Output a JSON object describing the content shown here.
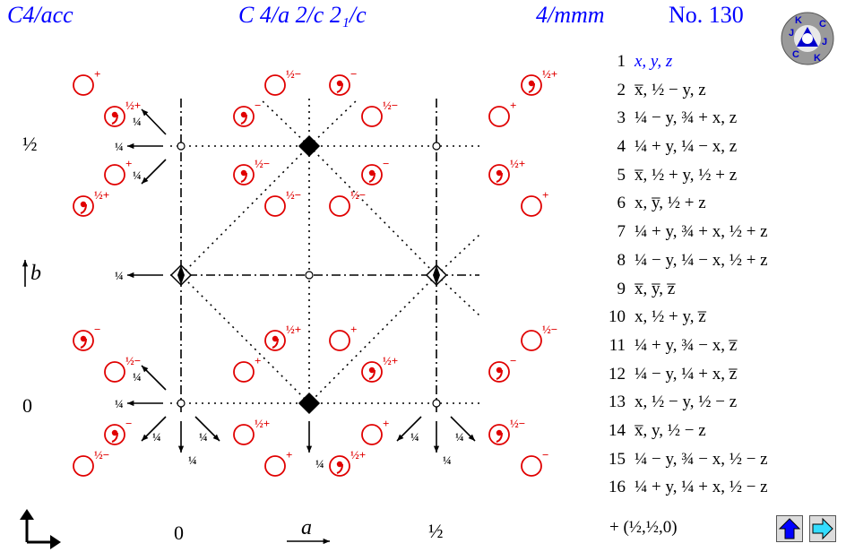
{
  "header": {
    "short_symbol": "C4/acc",
    "full_symbol": "C 4/a 2/c 2₁/c",
    "point_group": "4/mmm",
    "number_label": "No. 130"
  },
  "logo": {
    "text": "JKC JKC",
    "icon": "jkc-logo-icon"
  },
  "axes": {
    "b_label": "b",
    "a_label": "a",
    "left_labels": [
      "½",
      "0"
    ],
    "bottom_labels": [
      "0",
      "½"
    ]
  },
  "diagram_labels": {
    "quarter": "¼",
    "half_plus": "½+",
    "half_minus": "½−",
    "plus": "+",
    "minus": "−"
  },
  "operations": [
    {
      "num": "1",
      "expr": "x, y, z"
    },
    {
      "num": "2",
      "expr": "x̅, ½ − y, z"
    },
    {
      "num": "3",
      "expr": "¼ − y, ¾ + x, z"
    },
    {
      "num": "4",
      "expr": "¼ + y, ¼ − x, z"
    },
    {
      "num": "5",
      "expr": "x̅, ½ + y, ½ + z"
    },
    {
      "num": "6",
      "expr": "x, y̅, ½ + z"
    },
    {
      "num": "7",
      "expr": "¼ + y, ¾ + x, ½ + z"
    },
    {
      "num": "8",
      "expr": "¼ − y, ¼ − x, ½ + z"
    },
    {
      "num": "9",
      "expr": "x̅, y̅, z̅"
    },
    {
      "num": "10",
      "expr": "x, ½ + y, z̅"
    },
    {
      "num": "11",
      "expr": "¼ + y, ¾ − x, z̅"
    },
    {
      "num": "12",
      "expr": "¼ − y, ¼ + x, z̅"
    },
    {
      "num": "13",
      "expr": "x, ½ − y, ½ − z"
    },
    {
      "num": "14",
      "expr": "x̅, y, ½ − z"
    },
    {
      "num": "15",
      "expr": "¼ − y, ¾ − x, ½ − z"
    },
    {
      "num": "16",
      "expr": "¼ + y, ¼ + x, ½ − z"
    }
  ],
  "centering": "+ (½,½,0)",
  "nav": {
    "up_icon": "up-arrow-icon",
    "next_icon": "right-arrow-icon"
  },
  "colors": {
    "header_blue": "#0000ff",
    "symbol_red": "#e00000",
    "button_blue": "#0000ff",
    "button_cyan": "#33ddff"
  }
}
